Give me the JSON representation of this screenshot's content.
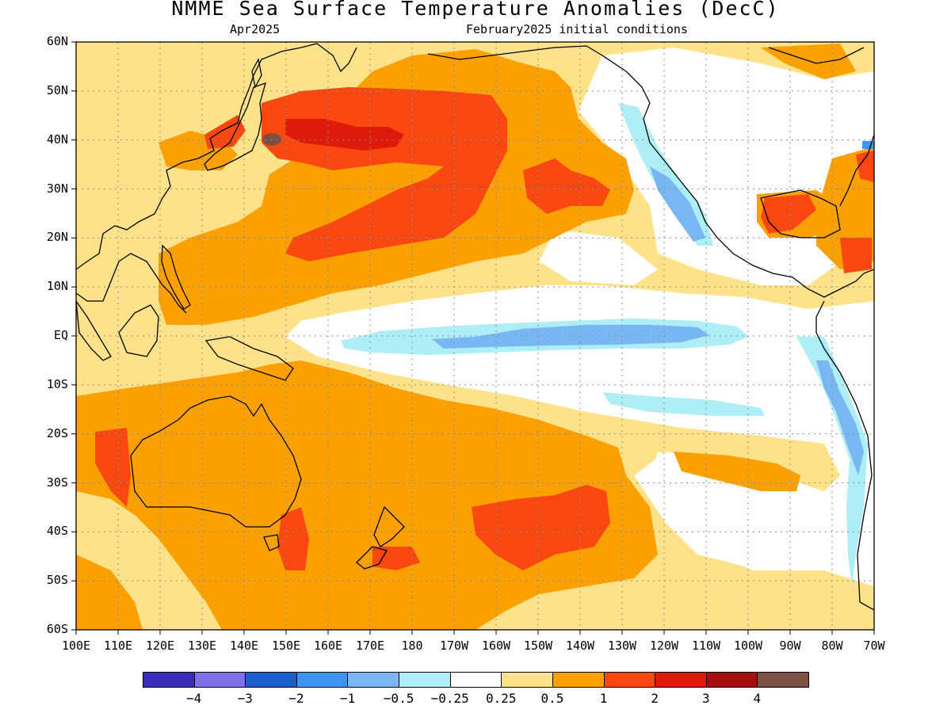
{
  "title": "NMME Sea Surface Temperature Anomalies (DecC)",
  "subtitle_left": "Apr2025",
  "subtitle_right": "February2025 initial conditions",
  "lat_labels": [
    "60N",
    "50N",
    "40N",
    "30N",
    "20N",
    "10N",
    "EQ",
    "10S",
    "20S",
    "30S",
    "40S",
    "50S",
    "60S"
  ],
  "lon_labels": [
    "100E",
    "110E",
    "120E",
    "130E",
    "140E",
    "150E",
    "160E",
    "170E",
    "180",
    "170W",
    "160W",
    "150W",
    "140W",
    "130W",
    "120W",
    "110W",
    "100W",
    "90W",
    "80W",
    "70W"
  ],
  "colorbar": {
    "colors": [
      "#3b2db8",
      "#7f70e8",
      "#1a5fcb",
      "#3c94f0",
      "#78b7f3",
      "#aeeef6",
      "#ffffff",
      "#fde28a",
      "#fca000",
      "#fb4710",
      "#de1b0a",
      "#a50e0d",
      "#7d5044"
    ],
    "labels": [
      "−4",
      "−3",
      "−2",
      "−1",
      "−0.5",
      "−0.25",
      "0.25",
      "0.5",
      "1",
      "2",
      "3",
      "4"
    ]
  },
  "map": {
    "lon_range": [
      "100E",
      "70W"
    ],
    "lat_range": [
      "60S",
      "60N"
    ],
    "variable": "Sea Surface Temperature Anomaly",
    "units": "DecC",
    "grid": true
  }
}
